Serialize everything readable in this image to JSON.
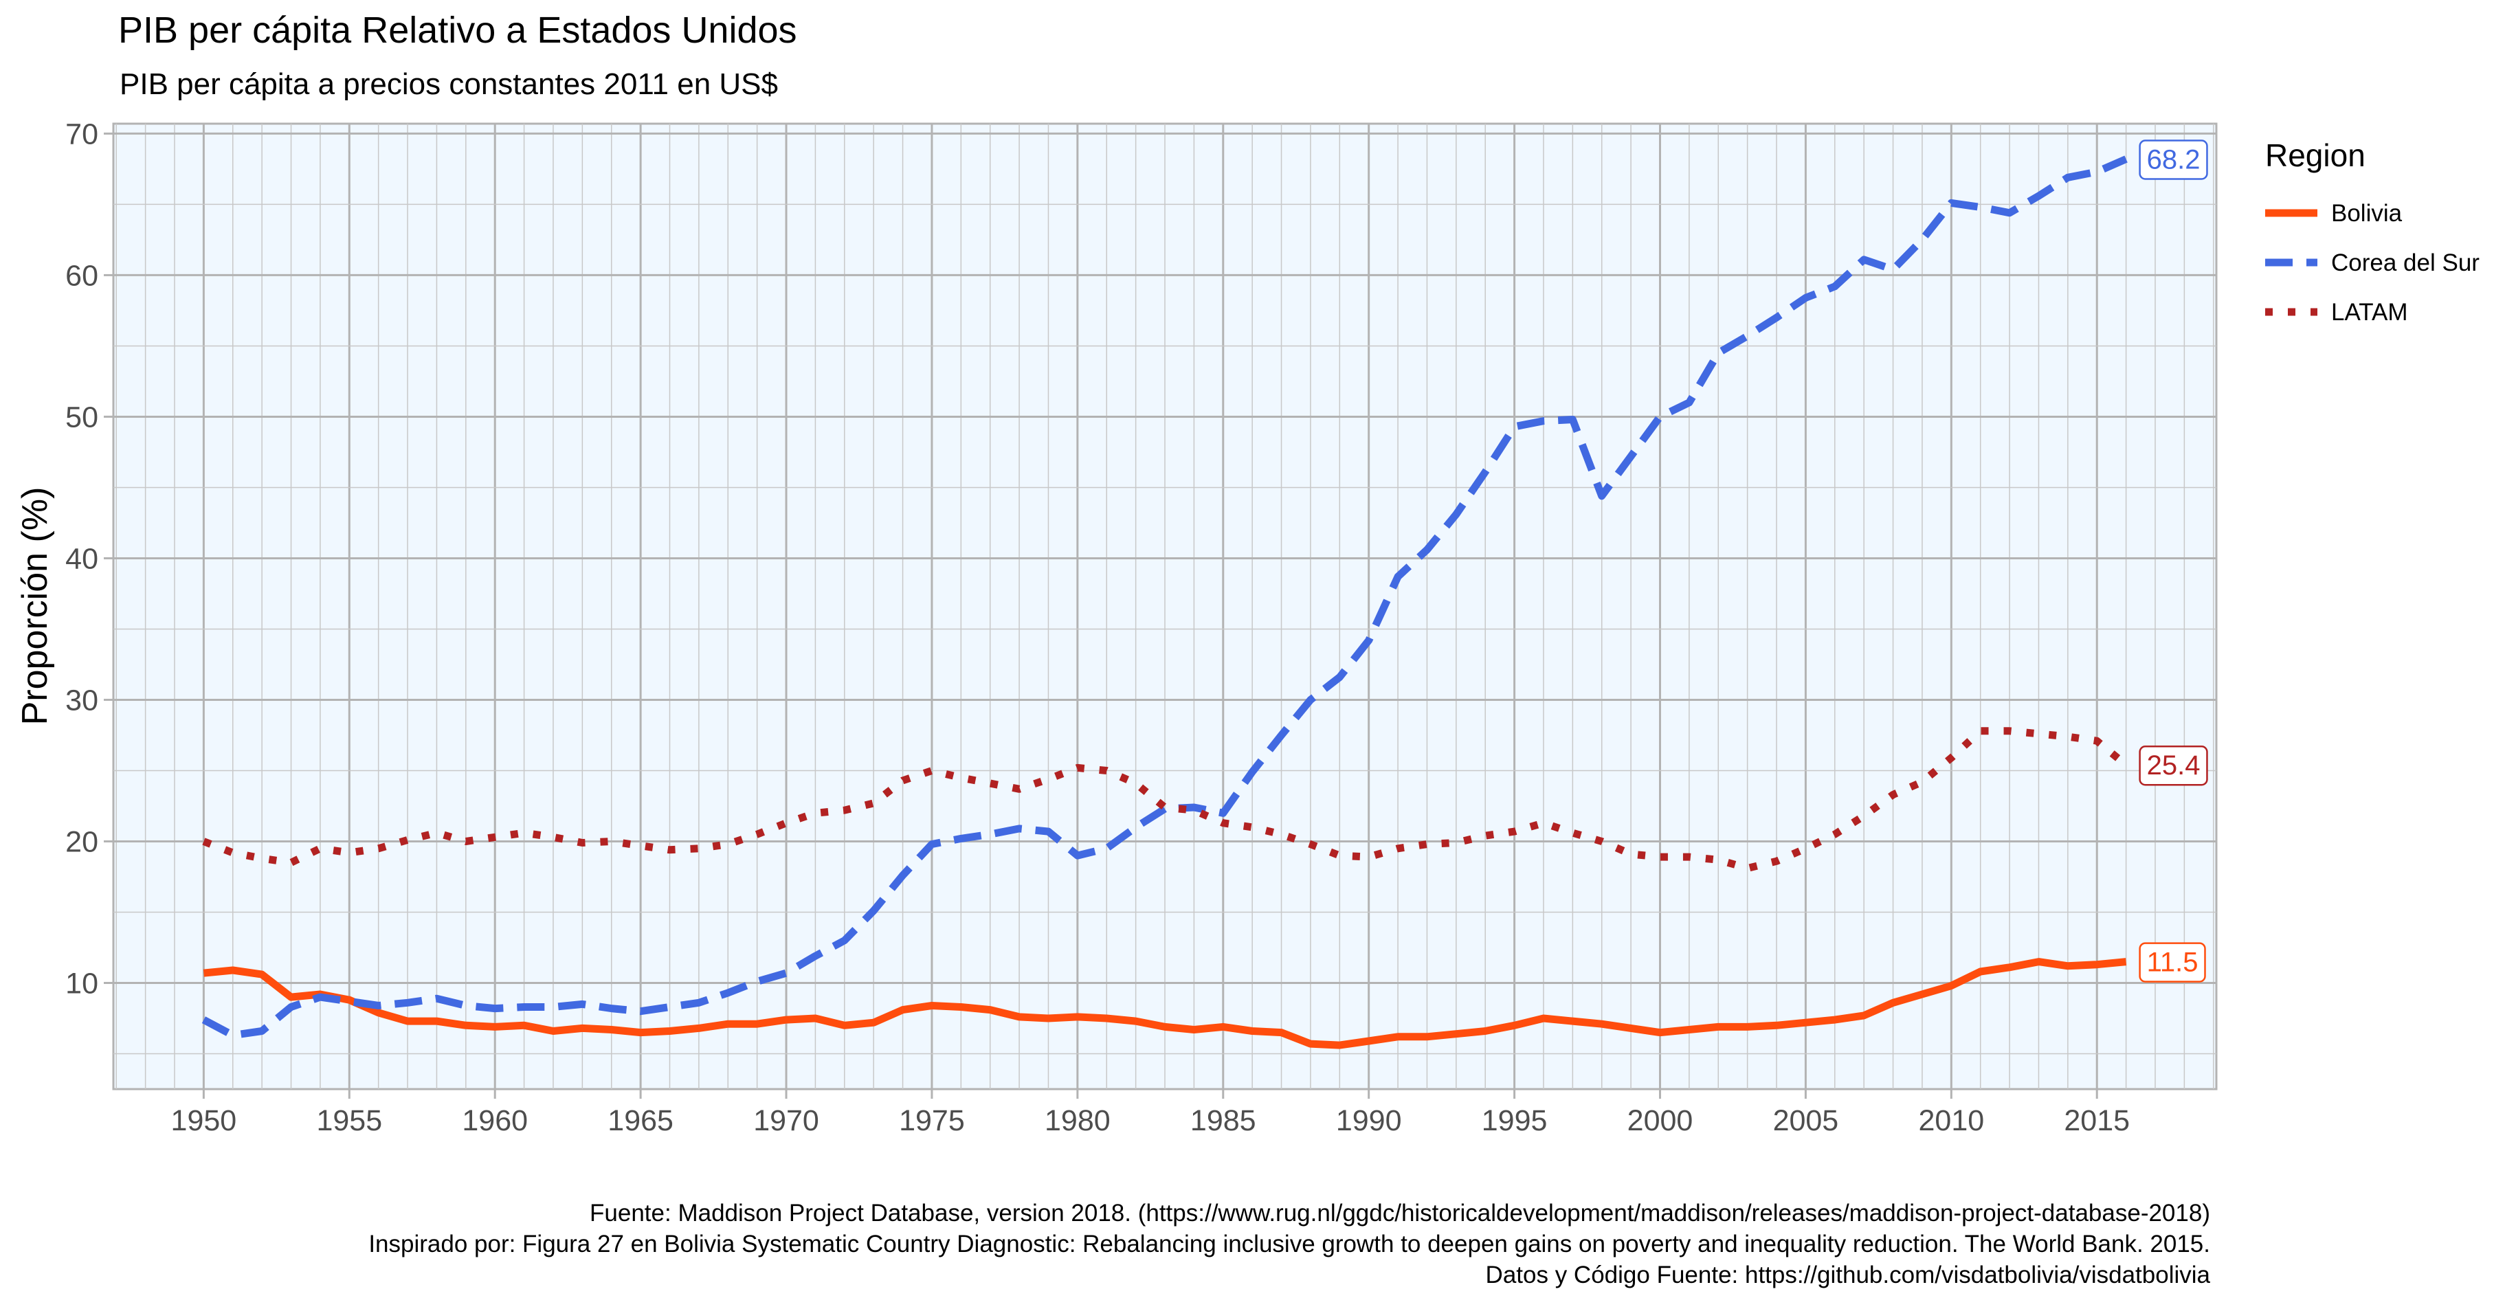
{
  "chart_data": {
    "type": "line",
    "title": "PIB per cápita Relativo a Estados Unidos",
    "subtitle": "PIB per cápita a precios constantes 2011 en US$",
    "xlabel": "",
    "ylabel": "Proporción (%)",
    "xlim": [
      1946.9,
      2019.1
    ],
    "ylim": [
      2.5,
      70.7
    ],
    "x_ticks": [
      "1950",
      "1955",
      "1960",
      "1965",
      "1970",
      "1975",
      "1980",
      "1985",
      "1990",
      "1995",
      "2000",
      "2005",
      "2010",
      "2015"
    ],
    "y_ticks": [
      "10",
      "20",
      "30",
      "40",
      "50",
      "60",
      "70"
    ],
    "grid": true,
    "legend_position": "right",
    "legend": {
      "title": "Region",
      "items": [
        "Bolivia",
        "Corea del Sur",
        "LATAM"
      ]
    },
    "series": [
      {
        "name": "Bolivia",
        "color": "#ff4d0d",
        "dash": "solid",
        "x": [
          1950,
          1951,
          1952,
          1953,
          1954,
          1955,
          1956,
          1957,
          1958,
          1959,
          1960,
          1961,
          1962,
          1963,
          1964,
          1965,
          1966,
          1967,
          1968,
          1969,
          1970,
          1971,
          1972,
          1973,
          1974,
          1975,
          1976,
          1977,
          1978,
          1979,
          1980,
          1981,
          1982,
          1983,
          1984,
          1985,
          1986,
          1987,
          1988,
          1989,
          1990,
          1991,
          1992,
          1993,
          1994,
          1995,
          1996,
          1997,
          1998,
          1999,
          2000,
          2001,
          2002,
          2003,
          2004,
          2005,
          2006,
          2007,
          2008,
          2009,
          2010,
          2011,
          2012,
          2013,
          2014,
          2015,
          2016
        ],
        "values": [
          10.7,
          10.9,
          10.6,
          9.0,
          9.2,
          8.8,
          7.9,
          7.3,
          7.3,
          7.0,
          6.9,
          7.0,
          6.6,
          6.8,
          6.7,
          6.5,
          6.6,
          6.8,
          7.1,
          7.1,
          7.4,
          7.5,
          7.0,
          7.2,
          8.1,
          8.4,
          8.3,
          8.1,
          7.6,
          7.5,
          7.6,
          7.5,
          7.3,
          6.9,
          6.7,
          6.9,
          6.6,
          6.5,
          5.7,
          5.6,
          5.9,
          6.2,
          6.2,
          6.4,
          6.6,
          7.0,
          7.5,
          7.3,
          7.1,
          6.8,
          6.5,
          6.7,
          6.9,
          6.9,
          7.0,
          7.2,
          7.4,
          7.7,
          8.6,
          9.2,
          9.8,
          10.8,
          11.1,
          11.5,
          11.2,
          11.3,
          11.5
        ],
        "end_label": "11.5"
      },
      {
        "name": "Corea del Sur",
        "color": "#4169e1",
        "dash": "dashed",
        "x": [
          1950,
          1951,
          1952,
          1953,
          1954,
          1955,
          1956,
          1957,
          1958,
          1959,
          1960,
          1961,
          1962,
          1963,
          1964,
          1965,
          1966,
          1967,
          1968,
          1969,
          1970,
          1971,
          1972,
          1973,
          1974,
          1975,
          1976,
          1977,
          1978,
          1979,
          1980,
          1981,
          1982,
          1983,
          1984,
          1985,
          1986,
          1987,
          1988,
          1989,
          1990,
          1991,
          1992,
          1993,
          1994,
          1995,
          1996,
          1997,
          1998,
          1999,
          2000,
          2001,
          2002,
          2003,
          2004,
          2005,
          2006,
          2007,
          2008,
          2009,
          2010,
          2011,
          2012,
          2013,
          2014,
          2015,
          2016
        ],
        "values": [
          7.4,
          6.3,
          6.6,
          8.3,
          9.0,
          8.7,
          8.4,
          8.6,
          8.9,
          8.4,
          8.2,
          8.3,
          8.3,
          8.5,
          8.2,
          8.0,
          8.3,
          8.6,
          9.3,
          10.1,
          10.7,
          11.9,
          13.0,
          15.1,
          17.6,
          19.8,
          20.2,
          20.5,
          20.9,
          20.7,
          19.0,
          19.5,
          21.0,
          22.3,
          22.4,
          22.0,
          24.9,
          27.5,
          30.0,
          31.6,
          34.2,
          38.7,
          40.6,
          43.1,
          46.1,
          49.3,
          49.7,
          49.8,
          44.4,
          47.2,
          50.0,
          51.0,
          54.5,
          55.7,
          57.0,
          58.4,
          59.2,
          61.1,
          60.4,
          62.5,
          65.1,
          64.8,
          64.4,
          65.6,
          66.9,
          67.3,
          68.2
        ],
        "end_label": "68.2"
      },
      {
        "name": "LATAM",
        "color": "#b22222",
        "dash": "dotted",
        "x": [
          1950,
          1951,
          1952,
          1953,
          1954,
          1955,
          1956,
          1957,
          1958,
          1959,
          1960,
          1961,
          1962,
          1963,
          1964,
          1965,
          1966,
          1967,
          1968,
          1969,
          1970,
          1971,
          1972,
          1973,
          1974,
          1975,
          1976,
          1977,
          1978,
          1979,
          1980,
          1981,
          1982,
          1983,
          1984,
          1985,
          1986,
          1987,
          1988,
          1989,
          1990,
          1991,
          1992,
          1993,
          1994,
          1995,
          1996,
          1997,
          1998,
          1999,
          2000,
          2001,
          2002,
          2003,
          2004,
          2005,
          2006,
          2007,
          2008,
          2009,
          2010,
          2011,
          2012,
          2013,
          2014,
          2015,
          2016
        ],
        "values": [
          20.0,
          19.2,
          18.8,
          18.5,
          19.5,
          19.2,
          19.5,
          20.1,
          20.6,
          20.0,
          20.3,
          20.6,
          20.3,
          19.9,
          20.0,
          19.7,
          19.4,
          19.5,
          19.8,
          20.5,
          21.3,
          22.0,
          22.2,
          22.7,
          24.3,
          25.0,
          24.5,
          24.1,
          23.7,
          24.4,
          25.2,
          25.0,
          24.1,
          22.4,
          22.2,
          21.3,
          21.0,
          20.5,
          19.8,
          19.0,
          18.9,
          19.5,
          19.8,
          19.9,
          20.4,
          20.7,
          21.3,
          20.6,
          20.0,
          19.1,
          18.9,
          18.9,
          18.7,
          18.1,
          18.6,
          19.5,
          20.5,
          21.8,
          23.3,
          24.2,
          25.9,
          27.8,
          27.8,
          27.6,
          27.4,
          27.1,
          25.4
        ],
        "end_label": "25.4"
      }
    ],
    "caption": [
      "Fuente: Maddison Project Database, version 2018. (https://www.rug.nl/ggdc/historicaldevelopment/maddison/releases/maddison-project-database-2018)",
      "Inspirado por: Figura 27 en Bolivia Systematic Country Diagnostic: Rebalancing inclusive growth to deepen gains on poverty and inequality reduction. The World Bank. 2015.",
      "Datos y Código Fuente: https://github.com/visdatbolivia/visdatbolivia"
    ]
  }
}
